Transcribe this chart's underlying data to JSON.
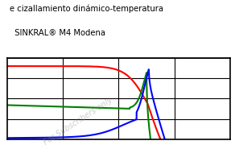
{
  "title1": "e cizallamiento dinámico-temperatura",
  "title2": "  SINKRAL® M4 Modena",
  "watermark": "For Subscribers only",
  "background_color": "#ffffff",
  "grid_color": "#000000",
  "line_red_color": "#ff0000",
  "line_green_color": "#008000",
  "line_blue_color": "#0000ff",
  "figsize": [
    2.92,
    1.8
  ],
  "dpi": 100
}
